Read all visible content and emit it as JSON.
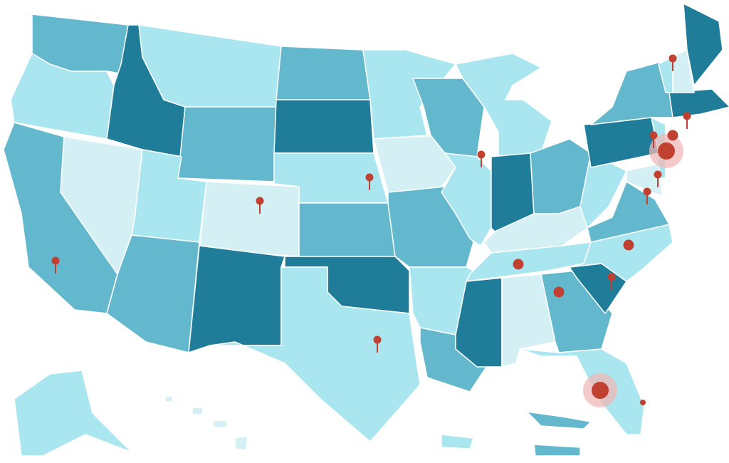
{
  "map": {
    "tier_colors": {
      "dark": "#1f7d99",
      "medium": "#63b8cd",
      "light": "#a9e6f0",
      "lightest": "#d5f0f4"
    },
    "pin_color": "#c0412f",
    "halo_color": "#f2b8b8",
    "states": [
      {
        "id": "WA",
        "tier": "medium"
      },
      {
        "id": "OR",
        "tier": "light"
      },
      {
        "id": "CA",
        "tier": "medium"
      },
      {
        "id": "NV",
        "tier": "lightest"
      },
      {
        "id": "ID",
        "tier": "dark"
      },
      {
        "id": "MT",
        "tier": "light"
      },
      {
        "id": "WY",
        "tier": "medium"
      },
      {
        "id": "UT",
        "tier": "light"
      },
      {
        "id": "CO",
        "tier": "lightest"
      },
      {
        "id": "AZ",
        "tier": "medium"
      },
      {
        "id": "NM",
        "tier": "dark"
      },
      {
        "id": "ND",
        "tier": "medium"
      },
      {
        "id": "SD",
        "tier": "dark"
      },
      {
        "id": "NE",
        "tier": "light"
      },
      {
        "id": "KS",
        "tier": "medium"
      },
      {
        "id": "OK",
        "tier": "dark"
      },
      {
        "id": "TX",
        "tier": "light"
      },
      {
        "id": "MN",
        "tier": "light"
      },
      {
        "id": "IA",
        "tier": "lightest"
      },
      {
        "id": "MO",
        "tier": "medium"
      },
      {
        "id": "AR",
        "tier": "light"
      },
      {
        "id": "LA",
        "tier": "medium"
      },
      {
        "id": "WI",
        "tier": "medium"
      },
      {
        "id": "IL",
        "tier": "light"
      },
      {
        "id": "MI",
        "tier": "light"
      },
      {
        "id": "IN",
        "tier": "dark"
      },
      {
        "id": "OH",
        "tier": "medium"
      },
      {
        "id": "KY",
        "tier": "lightest"
      },
      {
        "id": "TN",
        "tier": "light"
      },
      {
        "id": "MS",
        "tier": "dark"
      },
      {
        "id": "AL",
        "tier": "lightest"
      },
      {
        "id": "GA",
        "tier": "medium"
      },
      {
        "id": "FL",
        "tier": "light"
      },
      {
        "id": "SC",
        "tier": "dark"
      },
      {
        "id": "NC",
        "tier": "light"
      },
      {
        "id": "VA",
        "tier": "medium"
      },
      {
        "id": "WV",
        "tier": "light"
      },
      {
        "id": "PA",
        "tier": "dark"
      },
      {
        "id": "NY",
        "tier": "medium"
      },
      {
        "id": "NJ",
        "tier": "light"
      },
      {
        "id": "MD",
        "tier": "lightest"
      },
      {
        "id": "MA",
        "tier": "dark"
      },
      {
        "id": "VT",
        "tier": "light"
      },
      {
        "id": "NH",
        "tier": "lightest"
      },
      {
        "id": "ME",
        "tier": "dark"
      },
      {
        "id": "AK",
        "tier": "light"
      },
      {
        "id": "HI",
        "tier": "lightest"
      },
      {
        "id": "PR",
        "tier": "light"
      },
      {
        "id": "VI",
        "tier": "medium"
      }
    ],
    "pins": [
      {
        "state": "CA",
        "style": "pin"
      },
      {
        "state": "CO",
        "style": "pin"
      },
      {
        "state": "NE",
        "style": "pin"
      },
      {
        "state": "TX",
        "style": "pin"
      },
      {
        "state": "IL",
        "style": "pin"
      },
      {
        "state": "TN",
        "style": "dot"
      },
      {
        "state": "GA",
        "style": "dot"
      },
      {
        "state": "SC",
        "style": "pin"
      },
      {
        "state": "NC",
        "style": "dot"
      },
      {
        "state": "FL",
        "style": "halo"
      },
      {
        "state": "FL-E",
        "style": "small"
      },
      {
        "state": "VA",
        "style": "pin"
      },
      {
        "state": "MD",
        "style": "pin"
      },
      {
        "state": "NJ",
        "style": "halo"
      },
      {
        "state": "NY",
        "style": "dot"
      },
      {
        "state": "PA",
        "style": "pin"
      },
      {
        "state": "CT",
        "style": "pin"
      },
      {
        "state": "NH",
        "style": "pin"
      }
    ]
  }
}
